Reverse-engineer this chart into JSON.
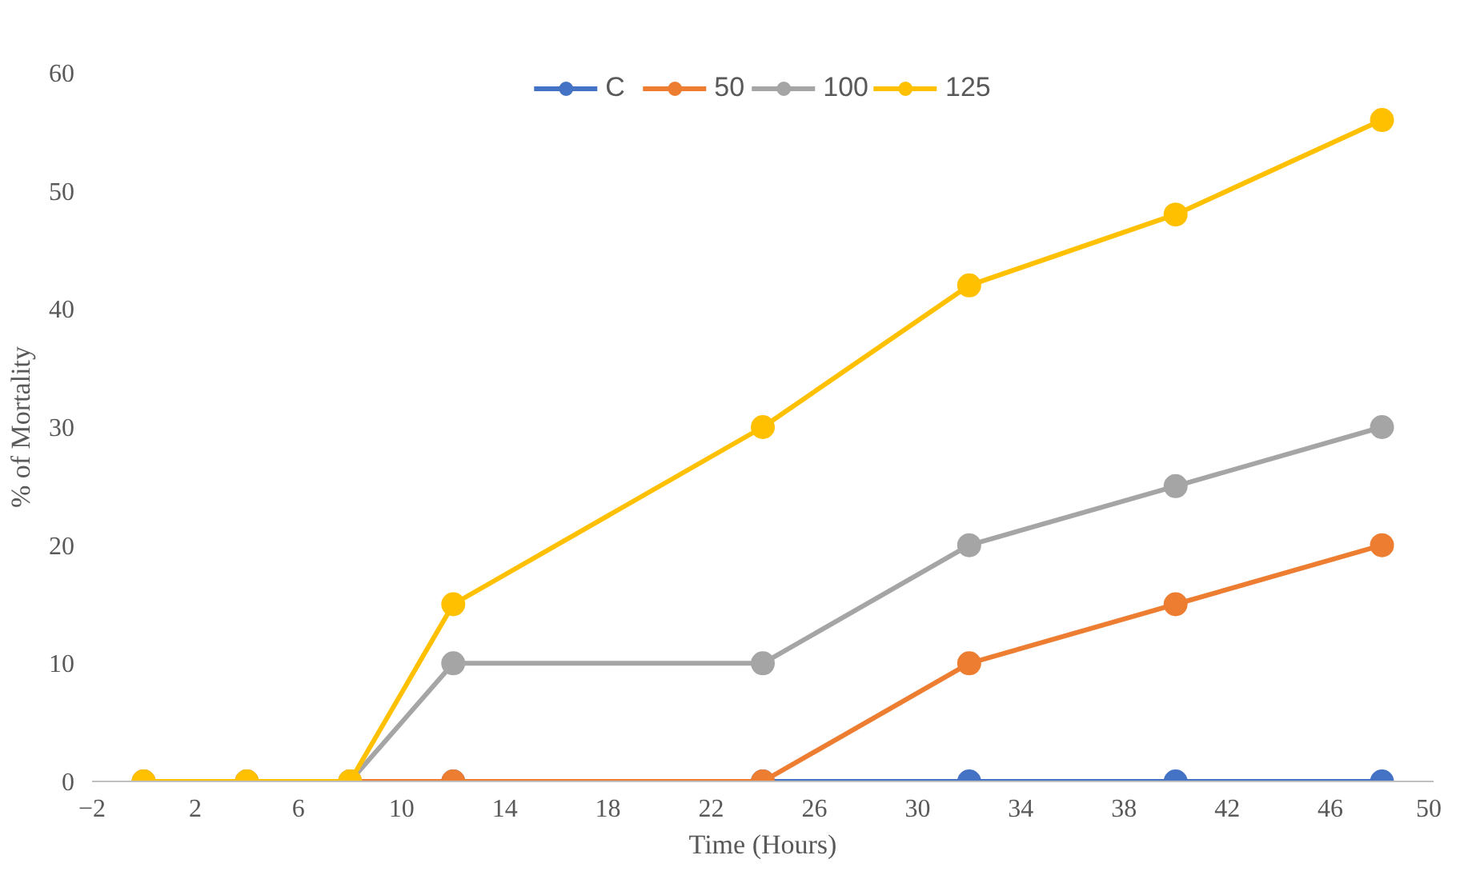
{
  "chart_data": {
    "type": "line",
    "xlabel": "Time (Hours)",
    "ylabel": "% of Mortality",
    "x": [
      0,
      4,
      8,
      12,
      24,
      32,
      40,
      48
    ],
    "xlim": [
      -2,
      50
    ],
    "xticks": [
      -2,
      2,
      6,
      10,
      14,
      18,
      22,
      26,
      30,
      34,
      38,
      42,
      46,
      50
    ],
    "ylim": [
      0,
      60
    ],
    "yticks": [
      0,
      10,
      20,
      30,
      40,
      50,
      60
    ],
    "grid": false,
    "legend": "top",
    "marker": "circle",
    "line_style": "solid",
    "series": [
      {
        "name": "C",
        "color": "#4472c4",
        "values": [
          null,
          null,
          null,
          0,
          0,
          0,
          0,
          0
        ]
      },
      {
        "name": "50",
        "color": "#ed7d31",
        "values": [
          0,
          0,
          0,
          0,
          0,
          10,
          15,
          20
        ]
      },
      {
        "name": "100",
        "color": "#a5a5a5",
        "values": [
          0,
          0,
          0,
          10,
          10,
          20,
          25,
          30
        ]
      },
      {
        "name": "125",
        "color": "#ffc000",
        "values": [
          0,
          0,
          0,
          15,
          30,
          42,
          48,
          56
        ]
      }
    ]
  }
}
